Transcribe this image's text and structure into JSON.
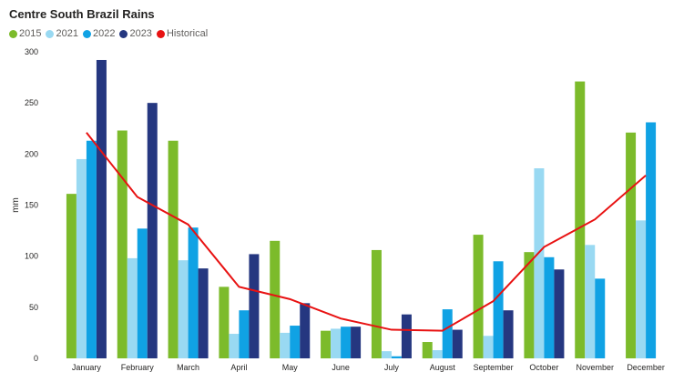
{
  "chart_data": {
    "type": "bar",
    "title": "Centre South Brazil Rains",
    "ylabel": "mm",
    "xlabel": "",
    "ylim": [
      0,
      300
    ],
    "yticks": [
      0,
      50,
      100,
      150,
      200,
      250,
      300
    ],
    "grid": false,
    "legend_position": "top-left",
    "categories": [
      "January",
      "February",
      "March",
      "April",
      "May",
      "June",
      "July",
      "August",
      "September",
      "October",
      "November",
      "December"
    ],
    "series": [
      {
        "name": "2015",
        "kind": "bar",
        "color": "#7cbb2b",
        "values": [
          161,
          223,
          213,
          70,
          115,
          27,
          106,
          16,
          121,
          104,
          271,
          221
        ]
      },
      {
        "name": "2021",
        "kind": "bar",
        "color": "#99d9f2",
        "values": [
          195,
          98,
          96,
          24,
          25,
          29,
          7,
          8,
          22,
          186,
          111,
          135
        ]
      },
      {
        "name": "2022",
        "kind": "bar",
        "color": "#10a2e4",
        "values": [
          213,
          127,
          128,
          47,
          32,
          31,
          2,
          48,
          95,
          99,
          78,
          231
        ]
      },
      {
        "name": "2023",
        "kind": "bar",
        "color": "#253780",
        "values": [
          292,
          250,
          88,
          102,
          54,
          31,
          43,
          28,
          47,
          87,
          null,
          null
        ]
      },
      {
        "name": "Historical",
        "kind": "line",
        "color": "#e81212",
        "values": [
          221,
          158,
          131,
          70,
          58,
          39,
          28,
          27,
          56,
          109,
          136,
          179
        ]
      }
    ]
  }
}
